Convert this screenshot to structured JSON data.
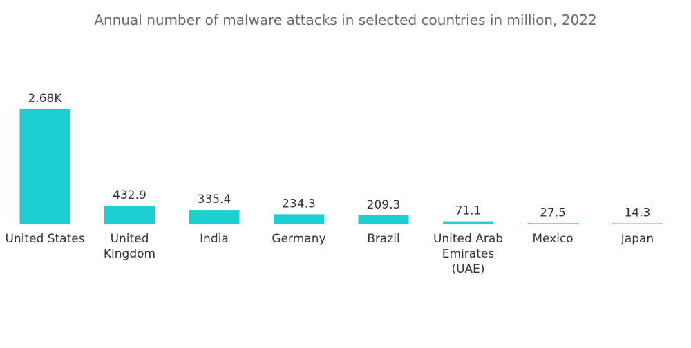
{
  "chart_data": {
    "type": "bar",
    "title": "Annual number of malware attacks in selected countries in million, 2022",
    "xlabel": "",
    "ylabel": "",
    "categories": [
      "United States",
      "United Kingdom",
      "India",
      "Germany",
      "Brazil",
      "United Arab Emirates (UAE)",
      "Mexico",
      "Japan"
    ],
    "category_lines": [
      [
        "United States"
      ],
      [
        "United",
        "Kingdom"
      ],
      [
        "India"
      ],
      [
        "Germany"
      ],
      [
        "Brazil"
      ],
      [
        "United Arab",
        "Emirates",
        "(UAE)"
      ],
      [
        "Mexico"
      ],
      [
        "Japan"
      ]
    ],
    "values": [
      2680,
      432.9,
      335.4,
      234.3,
      209.3,
      71.1,
      27.5,
      14.3
    ],
    "value_labels": [
      "2.68K",
      "432.9",
      "335.4",
      "234.3",
      "209.3",
      "71.1",
      "27.5",
      "14.3"
    ],
    "ylim": [
      0,
      2680
    ],
    "grid": false,
    "legend": "none",
    "bar_color": "#1ccfd0"
  }
}
